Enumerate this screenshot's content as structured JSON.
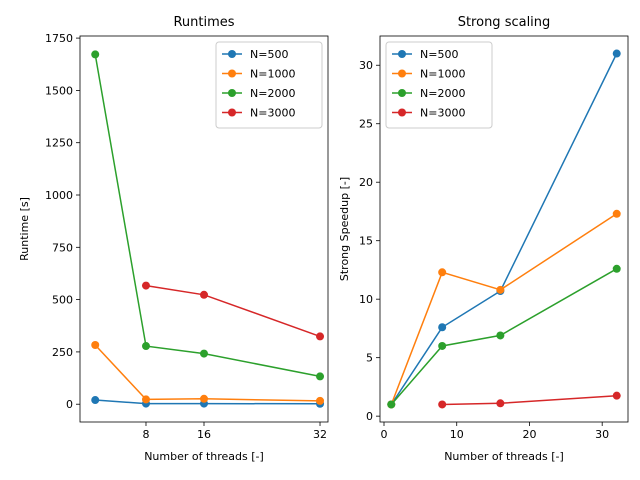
{
  "chart_data": [
    {
      "type": "line",
      "title": "Runtimes",
      "xlabel": "Number of threads [-]",
      "ylabel": "Runtime [s]",
      "xlim": [
        -1.1,
        33.1
      ],
      "ylim": [
        -85,
        1760
      ],
      "xticks": [
        8,
        16,
        32
      ],
      "yticks": [
        0,
        250,
        500,
        750,
        1000,
        1250,
        1500,
        1750
      ],
      "legend_position": "top-right",
      "series": [
        {
          "name": "N=500",
          "color": "#1f77b4",
          "x": [
            1,
            8,
            16,
            32
          ],
          "y": [
            20,
            3,
            3,
            2
          ]
        },
        {
          "name": "N=1000",
          "color": "#ff7f0e",
          "x": [
            1,
            8,
            16,
            32
          ],
          "y": [
            283,
            23,
            26,
            16
          ]
        },
        {
          "name": "N=2000",
          "color": "#2ca02c",
          "x": [
            1,
            8,
            16,
            32
          ],
          "y": [
            1672,
            278,
            242,
            133
          ]
        },
        {
          "name": "N=3000",
          "color": "#d62728",
          "x": [
            8,
            16,
            32
          ],
          "y": [
            567,
            523,
            324
          ]
        }
      ]
    },
    {
      "type": "line",
      "title": "Strong scaling",
      "xlabel": "Number of threads [-]",
      "ylabel": "Strong Speedup [-]",
      "xlim": [
        -0.55,
        33.55
      ],
      "ylim": [
        -0.5,
        32.5
      ],
      "xticks": [
        0,
        10,
        20,
        30
      ],
      "yticks": [
        0,
        5,
        10,
        15,
        20,
        25,
        30
      ],
      "legend_position": "top-left",
      "series": [
        {
          "name": "N=500",
          "color": "#1f77b4",
          "x": [
            1,
            8,
            16,
            32
          ],
          "y": [
            1,
            7.6,
            10.7,
            31.0
          ]
        },
        {
          "name": "N=1000",
          "color": "#ff7f0e",
          "x": [
            1,
            8,
            16,
            32
          ],
          "y": [
            1,
            12.3,
            10.8,
            17.3
          ]
        },
        {
          "name": "N=2000",
          "color": "#2ca02c",
          "x": [
            1,
            8,
            16,
            32
          ],
          "y": [
            1,
            6.0,
            6.9,
            12.6
          ]
        },
        {
          "name": "N=3000",
          "color": "#d62728",
          "x": [
            8,
            16,
            32
          ],
          "y": [
            1,
            1.1,
            1.75
          ]
        }
      ]
    }
  ]
}
